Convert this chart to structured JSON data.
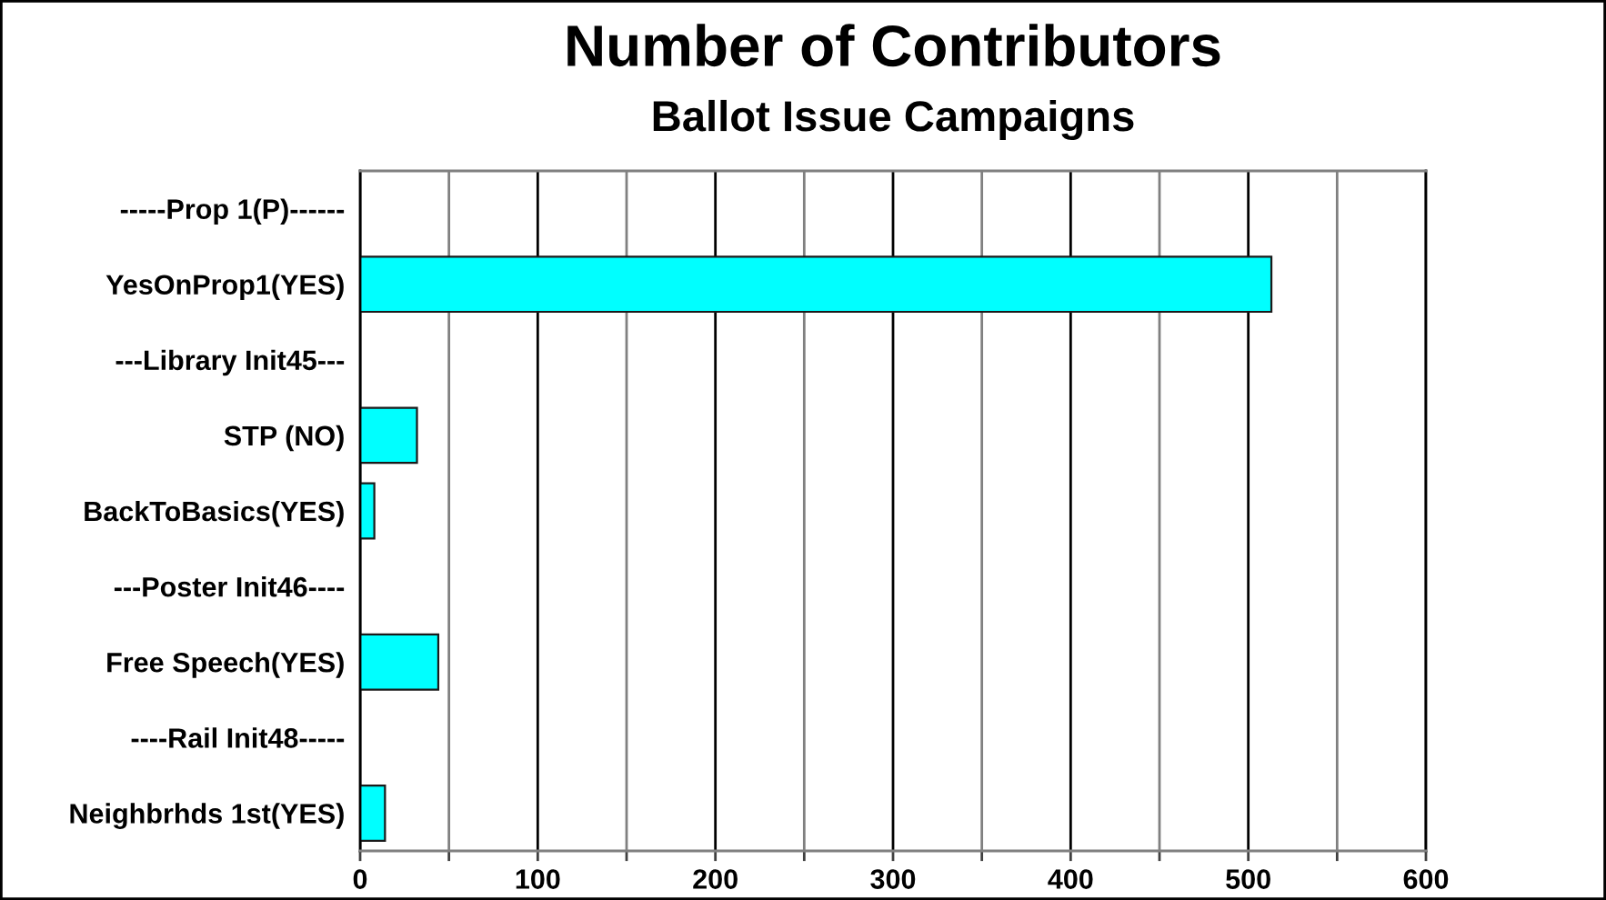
{
  "chart_data": {
    "type": "bar",
    "title": "Number of Contributors",
    "subtitle": "Ballot Issue Campaigns",
    "orientation": "horizontal",
    "categories": [
      "-----Prop 1(P)------",
      "YesOnProp1(YES)",
      "---Library Init45---",
      "STP (NO)",
      "BackToBasics(YES)",
      "---Poster Init46----",
      "Free Speech(YES)",
      "----Rail Init48-----",
      "Neighbrhds 1st(YES)"
    ],
    "values": [
      null,
      513,
      null,
      32,
      8,
      null,
      44,
      null,
      14
    ],
    "color": "#00ffff",
    "xlim": [
      0,
      600
    ],
    "xticks": [
      0,
      {
        "value": 50,
        "label": null
      },
      100,
      {
        "value": 150,
        "label": null
      },
      200,
      {
        "value": 250,
        "label": null
      },
      300,
      {
        "value": 350,
        "label": null
      },
      400,
      {
        "value": 450,
        "label": null
      },
      500,
      {
        "value": 550,
        "label": null
      },
      600
    ],
    "grid": "x"
  }
}
